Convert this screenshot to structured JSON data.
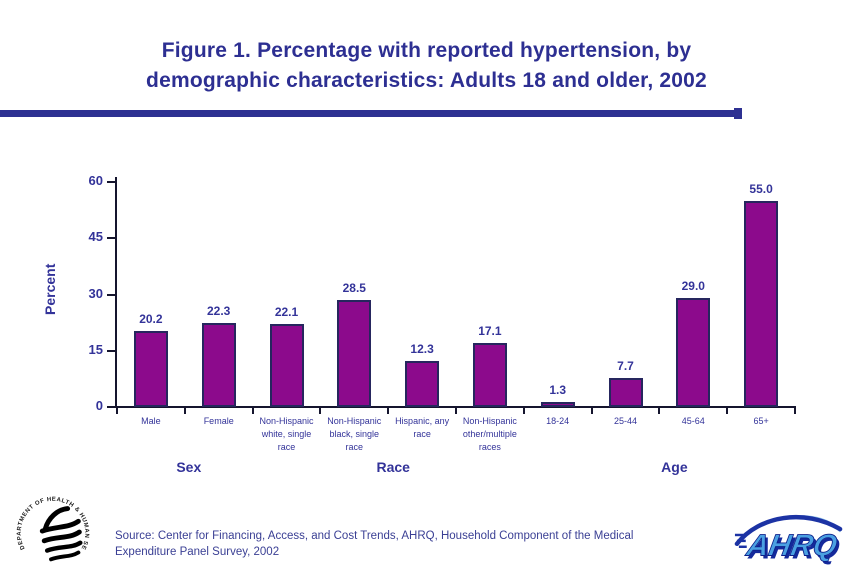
{
  "title": {
    "line1": "Figure 1. Percentage with reported hypertension, by",
    "line2": "demographic characteristics: Adults 18 and older, 2002"
  },
  "chart_data": {
    "type": "bar",
    "title": "Figure 1. Percentage with reported hypertension, by demographic characteristics: Adults 18 and older, 2002",
    "ylabel": "Percent",
    "xlabel": "",
    "ylim": [
      0,
      60
    ],
    "yticks": [
      0,
      15,
      30,
      45,
      60
    ],
    "grid": false,
    "legend_position": "none",
    "categories": [
      "Male",
      "Female",
      "Non-Hispanic white, single race",
      "Non-Hispanic black, single race",
      "Hispanic, any race",
      "Non-Hispanic other/multiple races",
      "18-24",
      "25-44",
      "45-64",
      "65+"
    ],
    "values": [
      20.2,
      22.3,
      22.1,
      28.5,
      12.3,
      17.1,
      1.3,
      7.7,
      29.0,
      55.0
    ],
    "value_label_decimals": 1,
    "groups": [
      {
        "label": "Sex",
        "from": 0,
        "to": 1
      },
      {
        "label": "Race",
        "from": 2,
        "to": 5
      },
      {
        "label": "Age",
        "from": 6,
        "to": 9
      }
    ],
    "bar_color": "#8c0a8c",
    "bar_border_color": "#26265e",
    "text_color": "#333399"
  },
  "footer": {
    "source_line1": "Source: Center for Financing, Access, and Cost Trends, AHRQ, Household Component of the Medical",
    "source_line2": "Expenditure Panel Survey, 2002",
    "hhs_seal_text": "DEPARTMENT OF HEALTH & HUMAN SERVICES - USA",
    "ahrq_logo_text": "AHRQ"
  },
  "colors": {
    "accent_navy": "#2d2f92",
    "bar_purple": "#8c0a8c",
    "label_navy": "#333399"
  }
}
